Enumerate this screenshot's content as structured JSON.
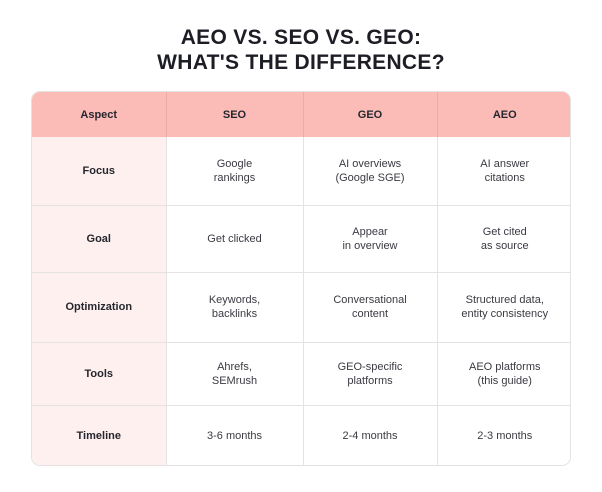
{
  "title": {
    "line1": "AEO VS. SEO VS. GEO:",
    "line2": "WHAT'S THE DIFFERENCE?"
  },
  "colors": {
    "header_bg": "#fbbcb8",
    "aspect_col_bg": "#fdf0ef",
    "border": "#e6e2e2",
    "text": "#1d1d25"
  },
  "table": {
    "headers": [
      "Aspect",
      "SEO",
      "GEO",
      "AEO"
    ],
    "rows": [
      {
        "aspect": "Focus",
        "seo": [
          "Google",
          "rankings"
        ],
        "geo": [
          "AI overviews",
          "(Google SGE)"
        ],
        "aeo": [
          "AI answer",
          "citations"
        ]
      },
      {
        "aspect": "Goal",
        "seo": [
          "Get clicked"
        ],
        "geo": [
          "Appear",
          "in overview"
        ],
        "aeo": [
          "Get cited",
          "as source"
        ]
      },
      {
        "aspect": "Optimization",
        "seo": [
          "Keywords,",
          "backlinks"
        ],
        "geo": [
          "Conversational",
          "content"
        ],
        "aeo": [
          "Structured data,",
          "entity consistency"
        ]
      },
      {
        "aspect": "Tools",
        "seo": [
          "Ahrefs,",
          "SEMrush"
        ],
        "geo": [
          "GEO-specific",
          "platforms"
        ],
        "aeo": [
          "AEO platforms",
          "(this guide)"
        ]
      },
      {
        "aspect": "Timeline",
        "seo": [
          "3-6 months"
        ],
        "geo": [
          "2-4 months"
        ],
        "aeo": [
          "2-3 months"
        ]
      }
    ]
  }
}
